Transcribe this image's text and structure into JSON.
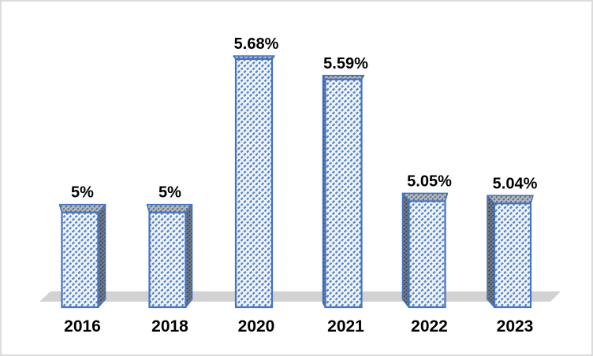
{
  "chart_data": {
    "type": "bar",
    "subtype": "3d-column-hatched",
    "title": "",
    "xlabel": "",
    "ylabel": "",
    "categories": [
      "2016",
      "2018",
      "2020",
      "2021",
      "2022",
      "2023"
    ],
    "values": [
      5,
      5,
      5.68,
      5.59,
      5.05,
      5.04
    ],
    "data_labels": [
      "5%",
      "5%",
      "5.68%",
      "5.59%",
      "5.05%",
      "5.04%"
    ],
    "ylim": [
      4.58,
      5.75
    ],
    "grid": false,
    "legend": "none",
    "axes_visible": false,
    "colors": {
      "bar_border": "#4472c4",
      "front_hatch_line": "#5b87c5",
      "front_hatch_bg": "#f1f5fb",
      "top_hatch_line": "#646c78",
      "top_hatch_bg": "#b3b9c1",
      "side_hatch_line": "#3f4754",
      "side_hatch_bg": "#737b86",
      "floor": "#d2d2d2",
      "label_text": "#000000",
      "frame_border": "#dcdcdc",
      "background": "#ffffff"
    }
  }
}
